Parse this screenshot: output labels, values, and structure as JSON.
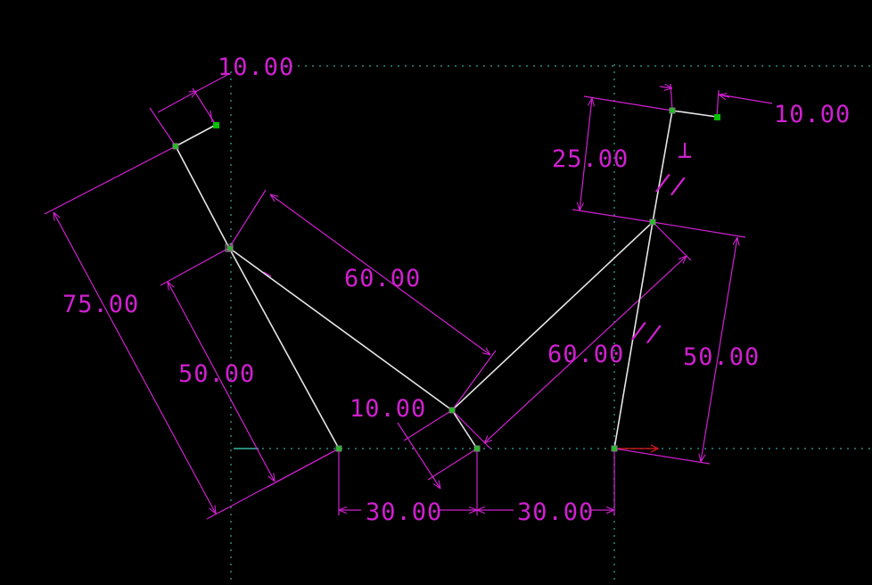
{
  "view": {
    "name": "CAD sketch viewport",
    "colors": {
      "background": "#000000",
      "axis": "#2a8a7a",
      "geometry": "#e6e6e6",
      "dimension": "#d020d0",
      "point": "#20c020",
      "endpoint": "#00c000",
      "axis_arrow": "#c01818"
    }
  },
  "dimensions": {
    "top_left_offset": "10.00",
    "top_right_offset": "10.00",
    "right_upper_length": "25.00",
    "left_long_length": "75.00",
    "left_diagonal_length": "60.00",
    "left_mid_length": "50.00",
    "right_diagonal_length": "60.00",
    "right_long_length": "50.00",
    "bottom_small_length": "10.00",
    "base_left_spacing": "30.00",
    "base_right_spacing": "30.00"
  },
  "constraints": {
    "perpendicular": "⊥",
    "parallel_1": "//",
    "parallel_2": "//"
  }
}
